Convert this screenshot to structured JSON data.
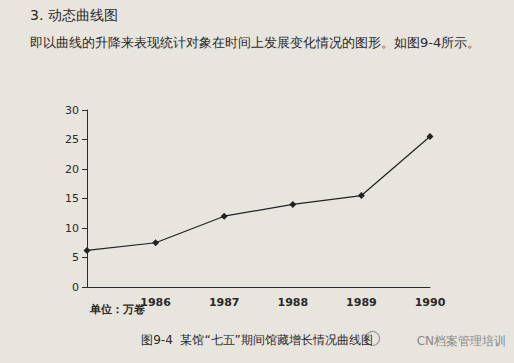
{
  "chart_data": {
    "type": "line",
    "title": "图9-4  某馆“七五”期间馆藏增长情况曲线图",
    "y_label": "单位：万卷",
    "annotations": [
      "3. 动态曲线图",
      "即以曲线的升降来表现统计对象在时间上发展变化情况的图形。如图9-4所示。",
      "CN档案管理培训"
    ],
    "categories": [
      null,
      "1986",
      "1987",
      "1988",
      "1989",
      "1990"
    ],
    "values": [
      6.2,
      7.5,
      12,
      14,
      15.5,
      25.5
    ],
    "color": "#222222",
    "marker": "diamond",
    "ylim": [
      0,
      30
    ],
    "yticks": [
      0,
      5,
      10,
      15,
      20,
      25,
      30
    ],
    "grid": false
  }
}
